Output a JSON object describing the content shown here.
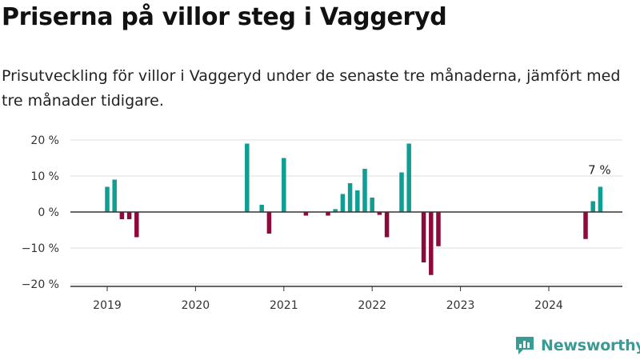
{
  "title": "Priserna på villor steg i Vaggeryd",
  "subtitle": "Prisutveckling för villor i Vaggeryd under de senaste tre månaderna, jämfört med tre månader tidigare.",
  "brand": "Newsworthy",
  "colors": {
    "positive": "#0e9e94",
    "negative": "#8c0a3c",
    "grid": "#dddddd",
    "axis": "#333333",
    "brand": "#3a9a96"
  },
  "chart_data": {
    "type": "bar",
    "title": "",
    "xlabel": "",
    "ylabel": "",
    "ylim": [
      -20,
      20
    ],
    "xlim": [
      "2018-08",
      "2024-11"
    ],
    "grid": true,
    "legend": "none",
    "y_ticks": [
      {
        "value": 20,
        "label": "20 %"
      },
      {
        "value": 10,
        "label": "10 %"
      },
      {
        "value": 0,
        "label": "0 %"
      },
      {
        "value": -10,
        "label": "−10 %"
      },
      {
        "value": -20,
        "label": "−20 %"
      }
    ],
    "x_ticks": [
      {
        "value": "2019-01",
        "label": "2019"
      },
      {
        "value": "2020-01",
        "label": "2020"
      },
      {
        "value": "2021-01",
        "label": "2021"
      },
      {
        "value": "2022-01",
        "label": "2022"
      },
      {
        "value": "2023-01",
        "label": "2023"
      },
      {
        "value": "2024-01",
        "label": "2024"
      }
    ],
    "x": [
      "2019-01",
      "2019-02",
      "2019-03",
      "2019-04",
      "2019-05",
      "2020-08",
      "2020-10",
      "2020-11",
      "2021-01",
      "2021-04",
      "2021-07",
      "2021-08",
      "2021-09",
      "2021-10",
      "2021-11",
      "2021-12",
      "2022-01",
      "2022-02",
      "2022-03",
      "2022-05",
      "2022-06",
      "2022-08",
      "2022-09",
      "2022-10",
      "2024-06",
      "2024-07",
      "2024-08"
    ],
    "values": [
      7,
      9,
      -2,
      -2,
      -7,
      19,
      2,
      -6,
      15,
      -1,
      -1,
      0.8,
      5,
      8,
      6,
      12,
      4,
      -0.8,
      -7,
      11,
      19,
      -14,
      -17.5,
      -9.5,
      -7.5,
      3,
      7
    ],
    "annotations": [
      {
        "x": "2024-08",
        "label": "7 %"
      }
    ]
  }
}
